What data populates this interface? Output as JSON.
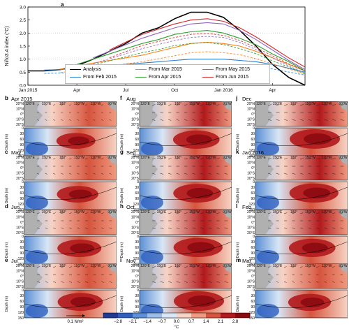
{
  "header": {
    "letter": "a"
  },
  "chart_data": [
    {
      "type": "line",
      "ylabel": "Niño3.4 index (°C)",
      "xticks": [
        "Jan 2015",
        "Apr",
        "Jul",
        "Oct",
        "Jan 2016",
        "Apr"
      ],
      "ylim": [
        0,
        3.0
      ],
      "yticks": [
        "0.0",
        "0.5",
        "1.0",
        "1.5",
        "2.0",
        "2.5",
        "3.0"
      ],
      "x": [
        "Jan 2015",
        "Feb",
        "Mar",
        "Apr",
        "May",
        "Jun",
        "Jul",
        "Aug",
        "Sep",
        "Oct",
        "Nov",
        "Dec",
        "Jan 2016",
        "Feb",
        "Mar",
        "Apr",
        "May",
        "Jun"
      ],
      "series": [
        {
          "name": "Analysis",
          "color": "#000000",
          "dashed": false,
          "values": [
            0.55,
            0.55,
            0.6,
            0.75,
            1.0,
            1.3,
            1.6,
            2.0,
            2.2,
            2.55,
            2.8,
            2.8,
            2.6,
            2.1,
            1.5,
            0.8,
            0.3,
            -0.1
          ]
        },
        {
          "name": "From Feb 2015",
          "color": "#2a7fd4",
          "dashed": false,
          "values": [
            null,
            0.58,
            0.6,
            0.65,
            0.7,
            0.75,
            0.8,
            0.85,
            0.9,
            0.95,
            1.0,
            1.0,
            1.0,
            0.95,
            0.9,
            0.8,
            0.65,
            0.5
          ]
        },
        {
          "name": "From Mar 2015",
          "color": "#ff7f0e",
          "dashed": false,
          "values": [
            null,
            null,
            0.62,
            0.75,
            0.85,
            0.95,
            1.05,
            1.15,
            1.3,
            1.45,
            1.6,
            1.65,
            1.6,
            1.5,
            1.3,
            1.05,
            0.8,
            0.55
          ]
        },
        {
          "name": "From Apr 2015",
          "color": "#2ca02c",
          "dashed": false,
          "values": [
            null,
            null,
            null,
            0.8,
            1.0,
            1.2,
            1.4,
            1.6,
            1.75,
            1.95,
            2.05,
            2.1,
            2.0,
            1.8,
            1.55,
            1.2,
            0.9,
            0.55
          ]
        },
        {
          "name": "From May 2015",
          "color": "#9467bd",
          "dashed": false,
          "values": [
            null,
            null,
            null,
            null,
            1.05,
            1.3,
            1.55,
            1.8,
            2.0,
            2.2,
            2.35,
            2.4,
            2.35,
            2.1,
            1.75,
            1.35,
            0.95,
            0.6
          ]
        },
        {
          "name": "From Jun 2015",
          "color": "#d62728",
          "dashed": false,
          "values": [
            null,
            null,
            null,
            null,
            null,
            1.35,
            1.65,
            1.95,
            2.15,
            2.35,
            2.5,
            2.55,
            2.45,
            2.2,
            1.85,
            1.45,
            1.05,
            0.7
          ]
        }
      ]
    },
    {
      "type": "heatmap",
      "colorbar_label": "°C",
      "colorbar_ticks": [
        "−2.8",
        "−2.1",
        "−1.4",
        "−0.7",
        "0.0",
        "0.7",
        "1.4",
        "2.1",
        "2.8"
      ],
      "colorbar_colors": [
        "#1f3a93",
        "#2e5fbf",
        "#5b8fd6",
        "#97bde8",
        "#d7e6f5",
        "#f7d3c4",
        "#ef9a80",
        "#d6543d",
        "#b2191c",
        "#8b0a12"
      ],
      "vector_scale": "0.1 N/m²",
      "map_lat_ticks": [
        "20°N",
        "10°N",
        "0°",
        "10°S",
        "20°S"
      ],
      "map_lon_ticks": [
        "120°E",
        "150°E",
        "180°",
        "150°W",
        "120°W",
        "90°W"
      ],
      "depth_ticks": [
        "0",
        "30",
        "60",
        "90",
        "120",
        "150"
      ],
      "depth_label": "Depth (m)",
      "panels": [
        {
          "letter": "b",
          "title": "Apr 2015",
          "intensity": 0.55
        },
        {
          "letter": "c",
          "title": "May",
          "intensity": 0.65
        },
        {
          "letter": "d",
          "title": "Jun",
          "intensity": 0.75
        },
        {
          "letter": "e",
          "title": "Jul",
          "intensity": 0.8
        },
        {
          "letter": "f",
          "title": "Aug",
          "intensity": 0.85
        },
        {
          "letter": "g",
          "title": "Sep",
          "intensity": 0.9
        },
        {
          "letter": "h",
          "title": "Oct",
          "intensity": 0.95
        },
        {
          "letter": "i",
          "title": "Nov",
          "intensity": 1.0
        },
        {
          "letter": "j",
          "title": "Dec",
          "intensity": 1.0
        },
        {
          "letter": "k",
          "title": "Jan 2016",
          "intensity": 0.95
        },
        {
          "letter": "l",
          "title": "Feb",
          "intensity": 0.85
        },
        {
          "letter": "m",
          "title": "Mar",
          "intensity": 0.7
        }
      ]
    }
  ]
}
